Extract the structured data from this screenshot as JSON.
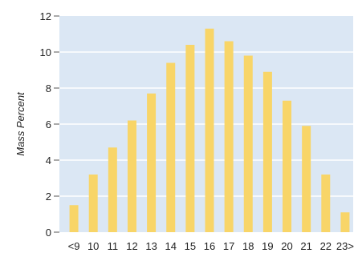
{
  "chart_data": {
    "type": "bar",
    "title": "",
    "xlabel": "",
    "ylabel": "Mass Percent",
    "categories": [
      "<9",
      "10",
      "11",
      "12",
      "13",
      "14",
      "15",
      "16",
      "17",
      "18",
      "19",
      "20",
      "21",
      "22",
      "23>"
    ],
    "values": [
      1.5,
      3.2,
      4.7,
      6.2,
      7.7,
      9.4,
      10.4,
      11.3,
      10.6,
      9.8,
      8.9,
      7.3,
      5.9,
      3.2,
      1.1
    ],
    "ylim": [
      0,
      12
    ],
    "yticks": [
      "0",
      "2",
      "4",
      "6",
      "8",
      "10",
      "12"
    ],
    "grid": true,
    "colors": {
      "bar": "#f8d568",
      "plot_bg": "#dbe7f4",
      "grid": "#ffffff"
    }
  }
}
